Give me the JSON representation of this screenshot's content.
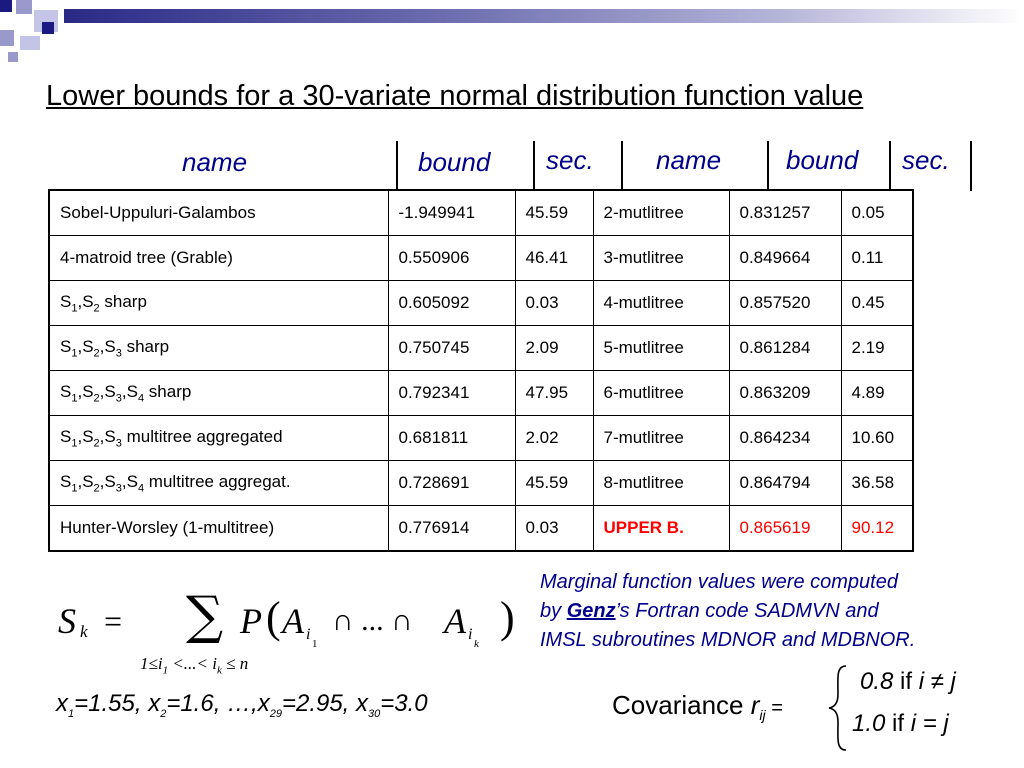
{
  "title": "Lower bounds for a 30-variate normal distribution function value",
  "headers": [
    "name",
    "bound",
    "sec.",
    "name",
    "bound",
    "sec."
  ],
  "rows": [
    {
      "name_main": "Sobel-Uppuluri-Galambos",
      "bound": "-1.949941",
      "sec": "45.59",
      "name2": "2-mutlitree",
      "bound2": "0.831257",
      "sec2": "0.05"
    },
    {
      "name_main": "4-matroid tree (Grable)",
      "bound": "0.550906",
      "sec": "46.41",
      "name2": "3-mutlitree",
      "bound2": "0.849664",
      "sec2": "0.11"
    },
    {
      "name_subs": [
        "1",
        "2"
      ],
      "name_suffix": " sharp",
      "bound": "0.605092",
      "sec": "0.03",
      "name2": "4-mutlitree",
      "bound2": "0.857520",
      "sec2": "0.45"
    },
    {
      "name_subs": [
        "1",
        "2",
        "3"
      ],
      "name_suffix": " sharp",
      "bound": "0.750745",
      "sec": "2.09",
      "name2": "5-mutlitree",
      "bound2": "0.861284",
      "sec2": "2.19"
    },
    {
      "name_subs": [
        "1",
        "2",
        "3",
        "4"
      ],
      "name_suffix": " sharp",
      "bound": "0.792341",
      "sec": "47.95",
      "name2": "6-mutlitree",
      "bound2": "0.863209",
      "sec2": "4.89"
    },
    {
      "name_subs": [
        "1",
        "2",
        "3"
      ],
      "name_suffix": " multitree aggregated",
      "bound": "0.681811",
      "sec": "2.02",
      "name2": "7-mutlitree",
      "bound2": "0.864234",
      "sec2": "10.60"
    },
    {
      "name_subs": [
        "1",
        "2",
        "3",
        "4"
      ],
      "name_suffix": " multitree aggregat.",
      "bound": "0.728691",
      "sec": "45.59",
      "name2": "8-mutlitree",
      "bound2": "0.864794",
      "sec2": "36.58"
    },
    {
      "name_main": "Hunter-Worsley (1-multitree)",
      "bound": "0.776914",
      "sec": "0.03",
      "name2": "UPPER B.",
      "bound2": "0.865619",
      "sec2": "90.12",
      "highlight": true
    }
  ],
  "highlight_color": "#ff0000",
  "note": {
    "line1": "Marginal function values were computed",
    "line2_pre": "by ",
    "line2_link": "Genz",
    "line2_post": "’s Fortran code SADMVN and",
    "line3": "IMSL subroutines MDNOR and MDBNOR."
  },
  "formula": {
    "S": "S",
    "k": "k",
    "eq": "=",
    "sum": "∑",
    "P": "P",
    "A": "A",
    "i": "i",
    "one": "1",
    "cap_dots": "∩ ... ∩",
    "limits": "1≤i",
    "limits_mid": " <...< i",
    "limits_end": " ≤ n"
  },
  "x_values": {
    "x1": "x",
    "s1": "1",
    "v1": "=1.55, ",
    "x2": "x",
    "s2": "2",
    "v2": "=1.6, …,",
    "x29": "x",
    "s29": "29",
    "v29": "=2.95, ",
    "x30": "x",
    "s30": "30",
    "v30": "=3.0"
  },
  "covariance": {
    "label": "Covariance ",
    "r": "r",
    "sub": "ij",
    "eq": " =",
    "case1_val": "0.8",
    "case1_if": " if ",
    "case1_cond": "i ≠ j",
    "case2_val": "1.0",
    "case2_if": " if ",
    "case2_cond": "i = j"
  }
}
